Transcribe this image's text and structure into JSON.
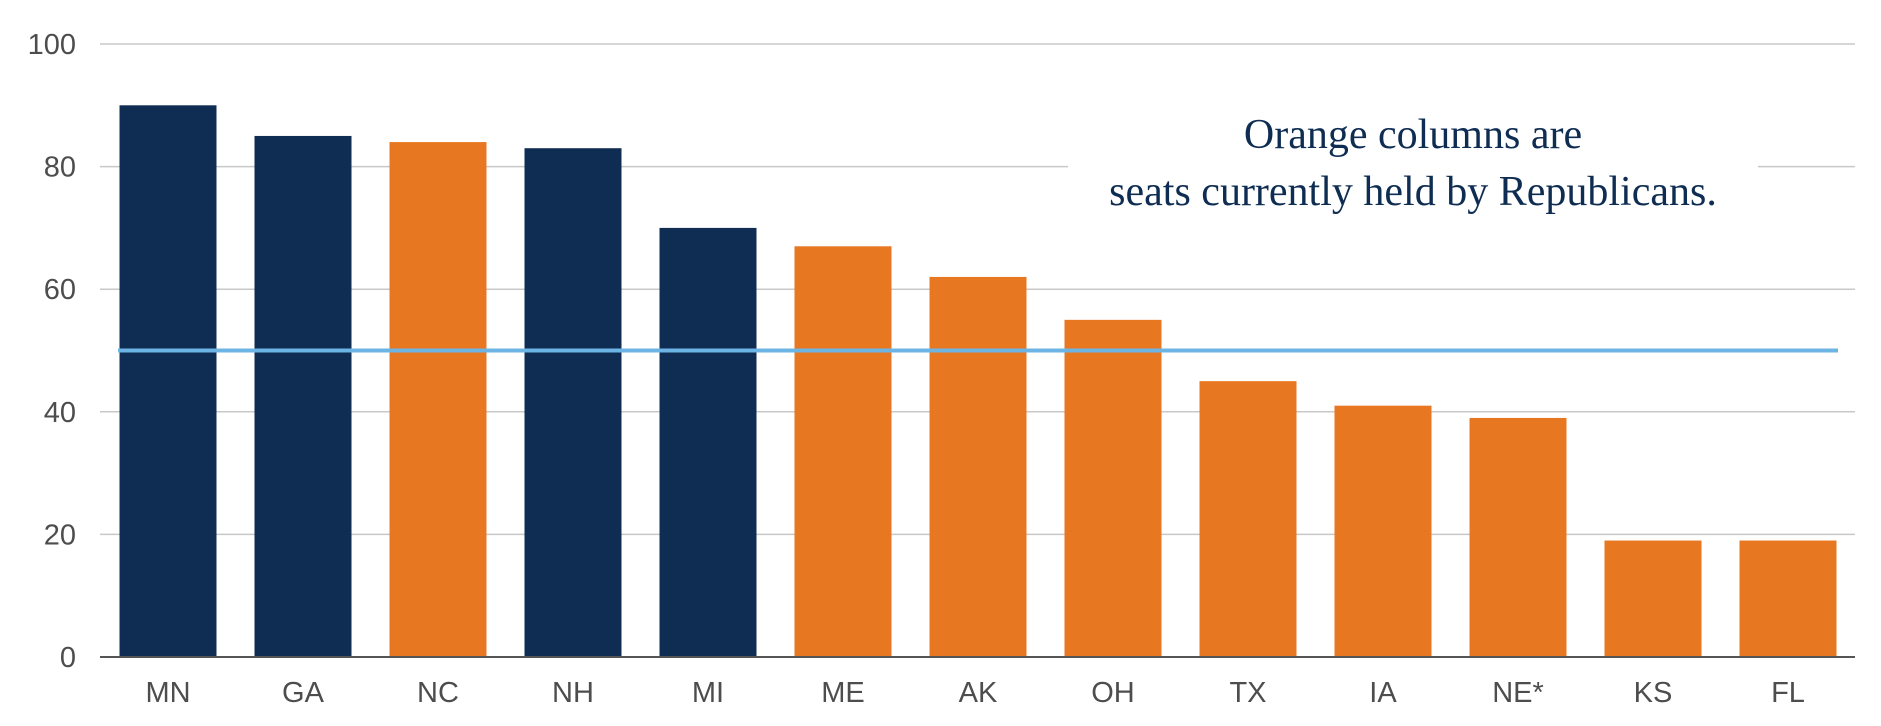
{
  "chart_data": {
    "type": "bar",
    "categories": [
      "MN",
      "GA",
      "NC",
      "NH",
      "MI",
      "ME",
      "AK",
      "OH",
      "TX",
      "IA",
      "NE*",
      "KS",
      "FL"
    ],
    "values": [
      90,
      85,
      84,
      83,
      70,
      67,
      62,
      55,
      45,
      41,
      39,
      19,
      19
    ],
    "bar_groups": [
      "democrat",
      "democrat",
      "republican",
      "democrat",
      "democrat",
      "republican",
      "republican",
      "republican",
      "republican",
      "republican",
      "republican",
      "republican",
      "republican"
    ],
    "colors": {
      "democrat": "#0f2d52",
      "republican": "#e87722",
      "reference_line": "#6cb4e4",
      "grid": "#c8c8c8",
      "axis": "#555555"
    },
    "ylim": [
      0,
      100
    ],
    "yticks": [
      0,
      20,
      40,
      60,
      80,
      100
    ],
    "reference_line_value": 50,
    "grid": true,
    "annotation": {
      "line1": "Orange columns are",
      "line2": "seats currently held by Republicans.",
      "placement": "top-right"
    },
    "title": "",
    "xlabel": "",
    "ylabel": ""
  }
}
